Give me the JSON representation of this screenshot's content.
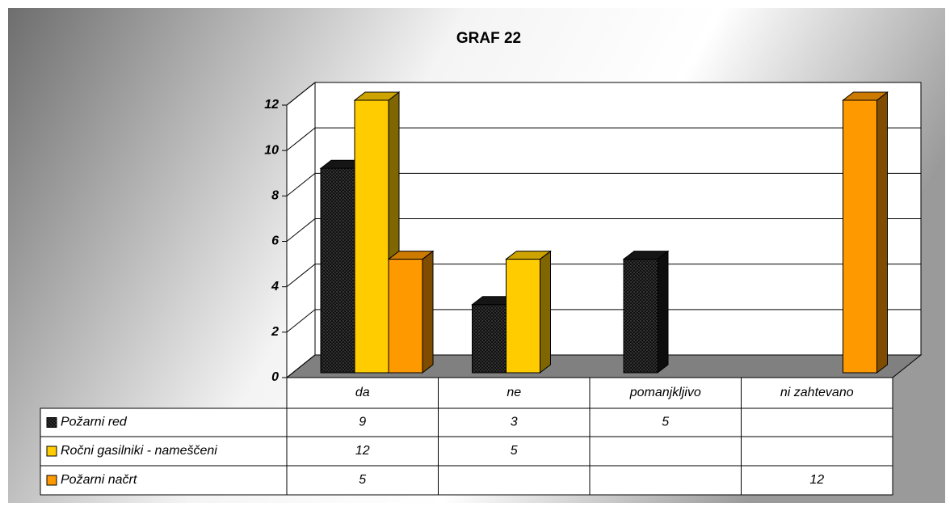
{
  "chart_data": {
    "type": "bar3d",
    "title": "GRAF 22",
    "categories": [
      "da",
      "ne",
      "pomanjkljivo",
      "ni zahtevano"
    ],
    "series": [
      {
        "name": "Požarni red",
        "color": "#1a1a1a",
        "values": [
          9,
          3,
          5,
          null
        ]
      },
      {
        "name": "Ročni gasilniki - nameščeni",
        "color": "#ffcc00",
        "values": [
          12,
          5,
          null,
          null
        ]
      },
      {
        "name": "Požarni načrt",
        "color": "#ff9900",
        "values": [
          5,
          null,
          null,
          12
        ]
      }
    ],
    "ylim": [
      0,
      12
    ],
    "yticks": [
      0,
      2,
      4,
      6,
      8,
      10,
      12
    ],
    "grid": true
  }
}
